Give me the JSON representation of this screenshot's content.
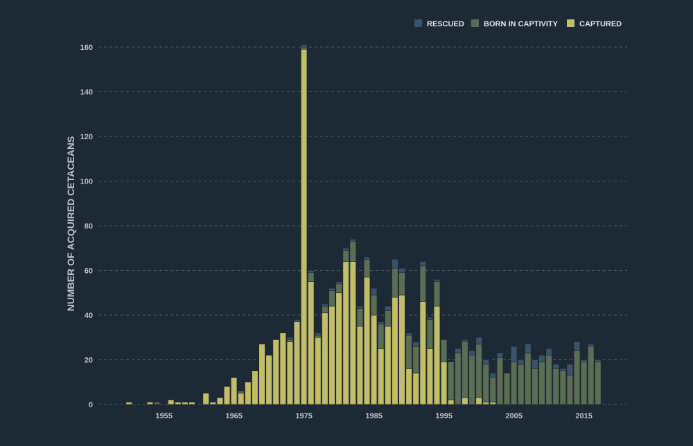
{
  "colors": {
    "background": "#1d2935",
    "grid": "#4d5966",
    "tick_text": "#b9c4d0",
    "axis_title": "#b9c4d0",
    "legend_text": "#dfe5eb",
    "bar_edge": "#1d2935"
  },
  "chart_data": {
    "type": "bar",
    "stacked": true,
    "title": "",
    "xlabel": "",
    "ylabel": "NUMBER OF ACQUIRED CETACEANS",
    "xlim": [
      1942,
      2019
    ],
    "ylim": [
      0,
      160
    ],
    "yticks": [
      0,
      20,
      40,
      60,
      80,
      100,
      120,
      140,
      160
    ],
    "xticks": [
      1955,
      1965,
      1975,
      1985,
      1995,
      2005,
      2015
    ],
    "grid": {
      "horizontal": true,
      "style": "dashed"
    },
    "legend_position": "top-right",
    "legend_order": [
      "RESCUED",
      "BORN IN CAPTIVITY",
      "CAPTURED"
    ],
    "years": [
      1949,
      1950,
      1951,
      1952,
      1953,
      1954,
      1955,
      1956,
      1957,
      1958,
      1959,
      1960,
      1961,
      1962,
      1963,
      1964,
      1965,
      1966,
      1967,
      1968,
      1969,
      1970,
      1971,
      1972,
      1973,
      1974,
      1975,
      1976,
      1977,
      1978,
      1979,
      1980,
      1981,
      1982,
      1983,
      1984,
      1985,
      1986,
      1987,
      1988,
      1989,
      1990,
      1991,
      1992,
      1993,
      1994,
      1995,
      1996,
      1997,
      1998,
      1999,
      2000,
      2001,
      2002,
      2003,
      2004,
      2005,
      2006,
      2007,
      2008,
      2009,
      2010,
      2011,
      2012,
      2013,
      2014,
      2015,
      2016,
      2017
    ],
    "series": [
      {
        "name": "CAPTURED",
        "color": "#c2bd66",
        "values": [
          0,
          1,
          0,
          0,
          1,
          0,
          0,
          2,
          1,
          1,
          1,
          0,
          5,
          1,
          3,
          8,
          12,
          5,
          10,
          15,
          27,
          22,
          29,
          32,
          28,
          37,
          159,
          55,
          30,
          41,
          44,
          50,
          64,
          64,
          35,
          57,
          40,
          25,
          35,
          48,
          49,
          16,
          14,
          46,
          25,
          44,
          19,
          2,
          0,
          3,
          0,
          3,
          1,
          1,
          0,
          0,
          0,
          0,
          0,
          0,
          0,
          0,
          0,
          0,
          0,
          0,
          0,
          0,
          0
        ]
      },
      {
        "name": "BORN IN CAPTIVITY",
        "color": "#5b6e55",
        "values": [
          0,
          0,
          0,
          0,
          0,
          1,
          0,
          0,
          0,
          0,
          0,
          0,
          0,
          0,
          0,
          0,
          0,
          1,
          0,
          0,
          0,
          0,
          0,
          0,
          1,
          0,
          1,
          4,
          1,
          3,
          7,
          4,
          5,
          9,
          8,
          8,
          9,
          11,
          7,
          13,
          10,
          15,
          12,
          16,
          13,
          11,
          10,
          17,
          23,
          25,
          22,
          24,
          17,
          11,
          21,
          14,
          19,
          18,
          23,
          16,
          19,
          22,
          16,
          15,
          13,
          24,
          19,
          26,
          19
        ]
      },
      {
        "name": "RESCUED",
        "color": "#3b536a",
        "values": [
          0,
          0,
          0,
          0,
          0,
          0,
          0,
          0,
          0,
          0,
          0,
          0,
          0,
          0,
          0,
          0,
          0,
          0,
          0,
          0,
          0,
          0,
          0,
          0,
          1,
          1,
          1,
          1,
          1,
          1,
          1,
          1,
          1,
          1,
          1,
          1,
          3,
          1,
          2,
          4,
          2,
          1,
          2,
          2,
          1,
          1,
          0,
          0,
          2,
          1,
          2,
          3,
          2,
          2,
          2,
          0,
          7,
          2,
          4,
          4,
          3,
          3,
          2,
          1,
          5,
          4,
          1,
          1,
          1
        ]
      }
    ]
  }
}
